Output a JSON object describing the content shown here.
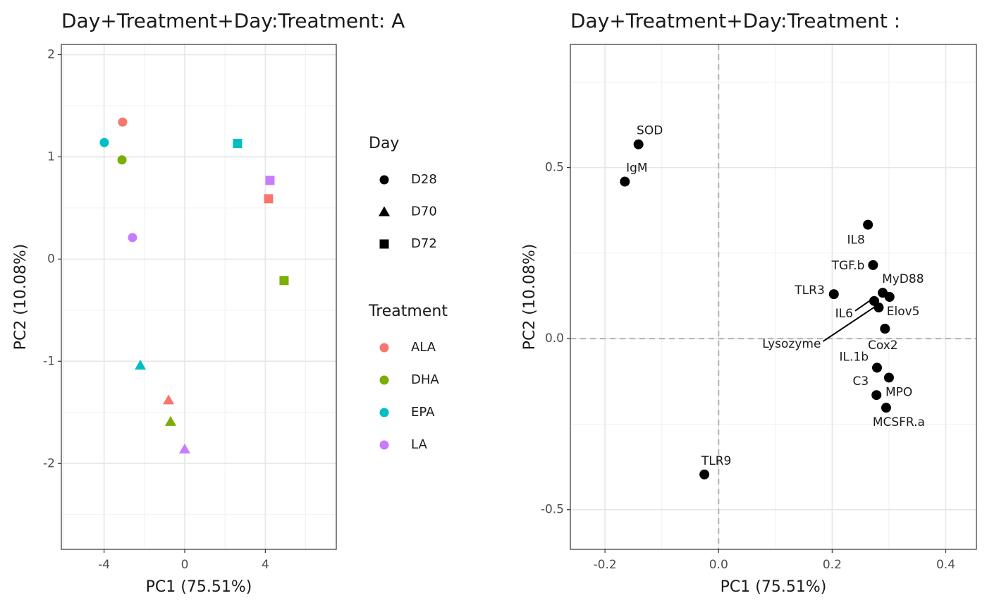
{
  "chart_data": [
    {
      "type": "scatter",
      "title": "Day+Treatment+Day:Treatment: A",
      "x_label": "PC1 (75.51%)",
      "y_label": "PC2 (10.08%)",
      "xlim": [
        -6.12,
        7.52
      ],
      "ylim": [
        -2.84,
        2.1
      ],
      "xticks": [
        -4,
        0,
        4
      ],
      "yticks": [
        -2,
        -1,
        0,
        1,
        2
      ],
      "minor_xticks": [
        -6,
        -2,
        2,
        6
      ],
      "minor_yticks": [
        -2.5,
        -1.5,
        -0.5,
        0.5,
        1.5
      ],
      "grid": true,
      "shape_legend": {
        "title": "Day",
        "labels": [
          "D28",
          "D70",
          "D72"
        ],
        "shapes": [
          "circle",
          "triangle",
          "square"
        ]
      },
      "color_legend_title": "Treatment",
      "series": [
        {
          "name": "ALA",
          "color": "#F8766D",
          "x": [
            -3.08,
            -0.8,
            4.16
          ],
          "y": [
            1.34,
            -1.38,
            0.59
          ]
        },
        {
          "name": "DHA",
          "color": "#7CAE00",
          "x": [
            -3.11,
            -0.7,
            4.93
          ],
          "y": [
            0.97,
            -1.59,
            -0.21
          ]
        },
        {
          "name": "EPA",
          "color": "#00BFC4",
          "x": [
            -3.99,
            -2.2,
            2.62
          ],
          "y": [
            1.14,
            -1.04,
            1.13
          ]
        },
        {
          "name": "LA",
          "color": "#C77CFF",
          "x": [
            -2.59,
            0.0,
            4.23
          ],
          "y": [
            0.21,
            -1.86,
            0.77
          ]
        }
      ]
    },
    {
      "type": "labeled-scatter",
      "title": "Day+Treatment+Day:Treatment :",
      "x_label": "PC1 (75.51%)",
      "y_label": "PC2 (10.08%)",
      "xlim": [
        -0.261,
        0.454
      ],
      "ylim": [
        -0.616,
        0.86
      ],
      "xticks": [
        -0.2,
        {
          "value": 0,
          "label": "0.0"
        },
        0.2,
        0.4
      ],
      "yticks": [
        -0.5,
        {
          "value": 0,
          "label": "0.0"
        },
        0.5
      ],
      "minor_xticks": [
        -0.1,
        0.1,
        0.3
      ],
      "minor_yticks": [
        -0.25,
        0.25,
        0.75
      ],
      "grid": true,
      "hline": 0,
      "vline": 0,
      "points": {
        "color": "#000000",
        "labels": [
          "SOD",
          "IgM",
          "IL8",
          "TGF.b",
          "TLR3",
          "MyD88",
          "Elov5",
          "IL6",
          "Lysozyme",
          "Cox2",
          "IL.1b",
          "MPO",
          "C3",
          "MCSFR.a",
          "TLR9"
        ],
        "x": [
          -0.141,
          -0.165,
          0.263,
          0.272,
          0.203,
          0.289,
          0.301,
          0.274,
          0.282,
          0.293,
          0.279,
          0.3,
          0.278,
          0.295,
          -0.025
        ],
        "y": [
          0.568,
          0.459,
          0.333,
          0.215,
          0.13,
          0.134,
          0.122,
          0.11,
          0.091,
          0.029,
          -0.085,
          -0.114,
          -0.165,
          -0.202,
          -0.397
        ]
      }
    }
  ]
}
